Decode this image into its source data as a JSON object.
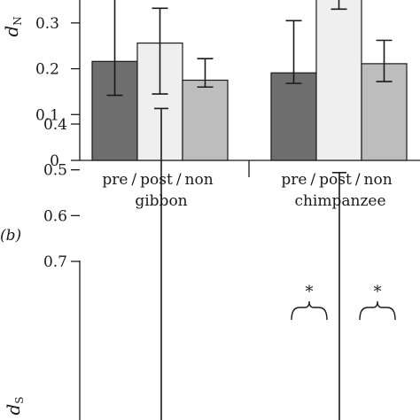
{
  "chart_data": [
    {
      "type": "bar",
      "panel_label": "",
      "ylabel": "d",
      "ylabel_sub": "N",
      "ylim": [
        0,
        0.35
      ],
      "yticks": [
        0,
        0.1,
        0.2,
        0.3
      ],
      "ytick_labels": [
        "0",
        "0.1",
        "0.2",
        "0.3"
      ],
      "bar_labels": [
        "pre",
        "post",
        "non"
      ],
      "bar_label_separator": "/",
      "group_names": [
        "gibbon",
        "chimpanzee"
      ],
      "series": [
        {
          "name": "pre",
          "color": "#6e6e6e"
        },
        {
          "name": "post",
          "color": "#efefef"
        },
        {
          "name": "non",
          "color": "#bdbdbd"
        }
      ],
      "groups": [
        {
          "name": "gibbon",
          "values": [
            0.216,
            0.256,
            0.175
          ],
          "err_low": [
            0.142,
            0.145,
            0.16
          ],
          "err_high": [
            0.352,
            0.332,
            0.222
          ]
        },
        {
          "name": "chimpanzee",
          "values": [
            0.191,
            0.352,
            0.211
          ],
          "err_low": [
            0.168,
            0.33,
            0.172
          ],
          "err_high": [
            0.305,
            0.38,
            0.262
          ]
        }
      ]
    },
    {
      "type": "bar",
      "panel_label": "(b)",
      "ylabel": "d",
      "ylabel_sub": "S",
      "ylim": [
        0.33,
        0.7
      ],
      "yticks": [
        0.4,
        0.5,
        0.6,
        0.7
      ],
      "ytick_labels": [
        "0.4",
        "0.5",
        "0.6",
        "0.7"
      ],
      "significance_marks": [
        "*",
        "*"
      ],
      "error_bars": [
        {
          "value": 0.36,
          "top": 0.366
        },
        {
          "value": 0.36,
          "top": 0.506
        }
      ]
    }
  ]
}
